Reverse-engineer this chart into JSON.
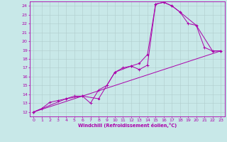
{
  "xlabel": "Windchill (Refroidissement éolien,°C)",
  "xlim": [
    -0.5,
    23.5
  ],
  "ylim": [
    11.5,
    24.5
  ],
  "xticks": [
    0,
    1,
    2,
    3,
    4,
    5,
    6,
    7,
    8,
    9,
    10,
    11,
    12,
    13,
    14,
    15,
    16,
    17,
    18,
    19,
    20,
    21,
    22,
    23
  ],
  "yticks": [
    12,
    13,
    14,
    15,
    16,
    17,
    18,
    19,
    20,
    21,
    22,
    23,
    24
  ],
  "bg_color": "#c8e8e8",
  "line_color": "#aa00aa",
  "grid_color": "#b0cccc",
  "line1_x": [
    0,
    1,
    2,
    3,
    4,
    5,
    6,
    7,
    8,
    9,
    10,
    11,
    12,
    13,
    14,
    15,
    16,
    17,
    18,
    19,
    20,
    21,
    22,
    23
  ],
  "line1_y": [
    12.0,
    12.4,
    13.1,
    13.3,
    13.5,
    13.8,
    13.8,
    13.0,
    14.5,
    15.0,
    16.5,
    17.0,
    17.2,
    16.8,
    17.3,
    24.2,
    24.4,
    24.0,
    23.3,
    22.0,
    21.8,
    19.3,
    18.9,
    18.9
  ],
  "line2_x": [
    0,
    4,
    6,
    8,
    10,
    12,
    13,
    14,
    15,
    16,
    17,
    18,
    20,
    22,
    23
  ],
  "line2_y": [
    12.0,
    13.5,
    13.8,
    13.5,
    16.5,
    17.2,
    17.5,
    18.5,
    24.2,
    24.4,
    24.0,
    23.3,
    21.8,
    18.9,
    18.9
  ],
  "line3_x": [
    0,
    23
  ],
  "line3_y": [
    12.0,
    18.9
  ]
}
